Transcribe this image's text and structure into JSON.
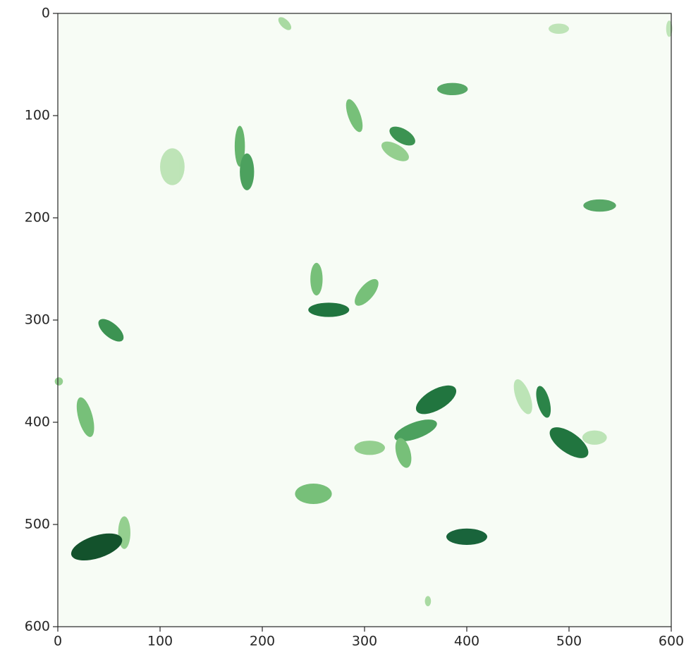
{
  "chart_data": {
    "type": "image",
    "colormap": "Greens",
    "xlim": [
      0,
      600
    ],
    "ylim": [
      600,
      0
    ],
    "xticks": [
      0,
      100,
      200,
      300,
      400,
      500,
      600
    ],
    "yticks": [
      0,
      100,
      200,
      300,
      400,
      500,
      600
    ]
  }
}
